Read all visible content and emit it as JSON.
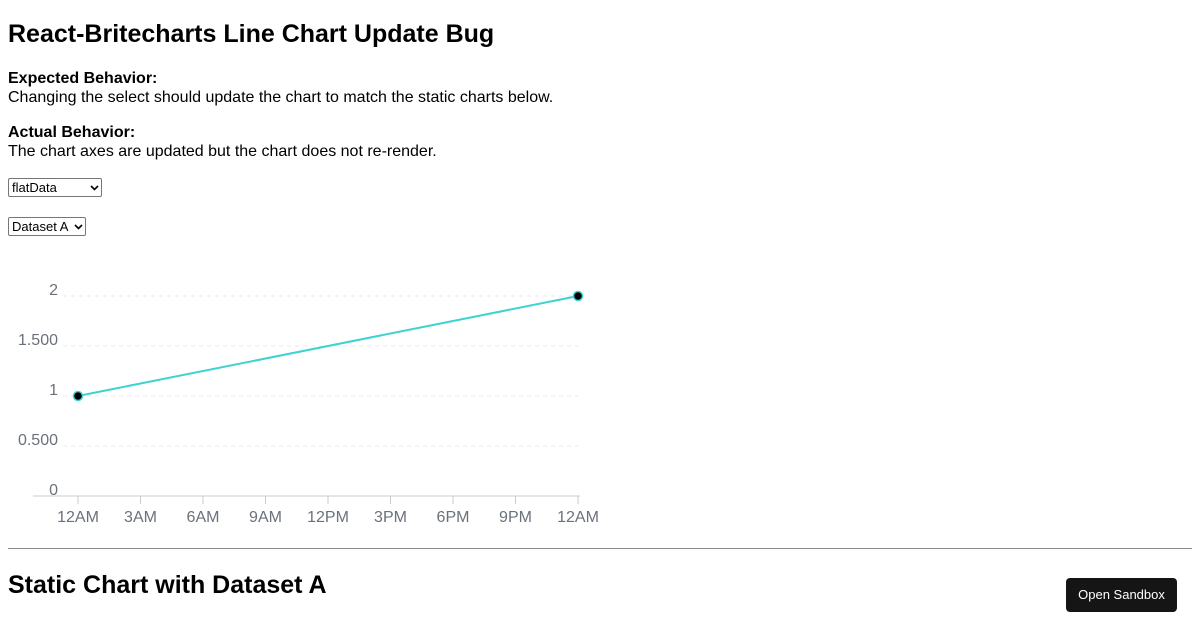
{
  "header": {
    "title": "React-Britecharts Line Chart Update Bug"
  },
  "expected": {
    "label": "Expected Behavior:",
    "text": "Changing the select should update the chart to match the static charts below."
  },
  "actual": {
    "label": "Actual Behavior:",
    "text": "The chart axes are updated but the chart does not re-render."
  },
  "selects": {
    "data_type": {
      "selected": "flatData"
    },
    "dataset": {
      "selected": "Dataset A"
    }
  },
  "chart_data": {
    "type": "line",
    "x_tick_labels": [
      "12AM",
      "3AM",
      "6AM",
      "9AM",
      "12PM",
      "3PM",
      "6PM",
      "9PM",
      "12AM"
    ],
    "y_tick_labels": [
      "0",
      "0.500",
      "1",
      "1.500",
      "2"
    ],
    "ylim": [
      0,
      2
    ],
    "x_hours_range": [
      0,
      24
    ],
    "grid": "horizontal-dashed",
    "line_color": "#3ed3cf",
    "point_color": "#000000",
    "series": [
      {
        "points": [
          {
            "x": "12AM",
            "y": 1
          },
          {
            "x": "12AM",
            "y": 2
          }
        ],
        "x_hours": [
          0,
          24
        ],
        "values": [
          1,
          2
        ]
      }
    ]
  },
  "static_section": {
    "title": "Static Chart with Dataset A",
    "sandbox_label": "Open Sandbox"
  },
  "icons": {
    "select_arrow": "chevron-down-icon"
  }
}
